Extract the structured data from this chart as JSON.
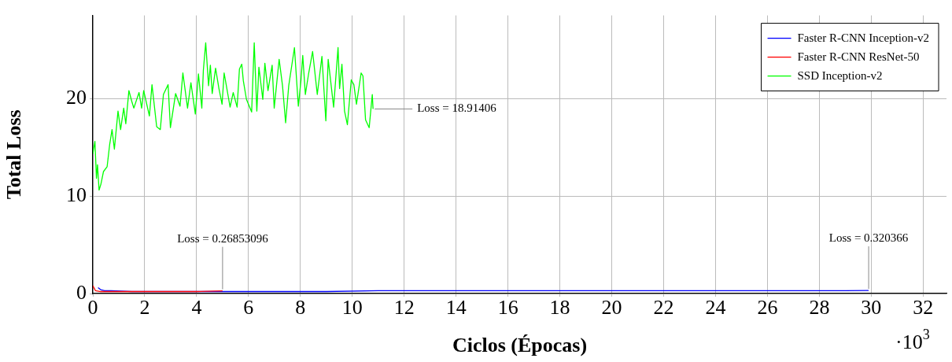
{
  "chart_data": {
    "type": "line",
    "xlabel": "Ciclos (Épocas)",
    "ylabel": "Total Loss",
    "xlim": [
      0,
      32.9
    ],
    "xticks": [
      0,
      2,
      4,
      6,
      8,
      10,
      12,
      14,
      16,
      18,
      20,
      22,
      24,
      26,
      28,
      30,
      32
    ],
    "ylim": [
      0,
      28.5
    ],
    "yticks": [
      0,
      10,
      20
    ],
    "grid": true,
    "legend": "top right",
    "marker": "none",
    "line_style": "solid",
    "annotations": [
      {
        "text": "Loss = 18.91406",
        "x": 10.8,
        "y": 18.91406
      },
      {
        "text": "Loss = 0.26853096",
        "x": 5.0,
        "y": 0.26853096
      },
      {
        "text": "Loss = 0.320366",
        "x": 29.9,
        "y": 0.320366
      },
      "·10$^{3}$"
    ],
    "series": [
      {
        "name": "Faster R-CNN Inception-v2",
        "color": "#0000ff",
        "x": [
          0.2,
          0.3,
          0.45,
          0.7,
          1.5,
          3,
          5,
          7,
          9,
          11,
          13,
          15,
          17,
          19,
          21,
          23,
          25,
          27,
          29,
          29.9
        ],
        "values": [
          0.6,
          0.4,
          0.3,
          0.3,
          0.2,
          0.2,
          0.2,
          0.2,
          0.2,
          0.3,
          0.3,
          0.3,
          0.3,
          0.3,
          0.3,
          0.3,
          0.3,
          0.3,
          0.3,
          0.320366
        ]
      },
      {
        "name": "Faster R-CNN ResNet-50",
        "color": "#ff0000",
        "x": [
          0,
          0.1,
          0.3,
          0.6,
          1,
          2,
          3,
          4,
          5.0
        ],
        "values": [
          0.8,
          0.3,
          0.2,
          0.2,
          0.2,
          0.2,
          0.2,
          0.2,
          0.26853096
        ]
      },
      {
        "name": "SSD Inception-v2",
        "color": "#00ff00",
        "x": [
          0,
          0.08,
          0.14,
          0.18,
          0.24,
          0.31,
          0.41,
          0.55,
          0.65,
          0.74,
          0.83,
          0.97,
          1.07,
          1.19,
          1.27,
          1.39,
          1.5,
          1.58,
          1.78,
          1.88,
          1.96,
          2.18,
          2.28,
          2.46,
          2.6,
          2.72,
          2.9,
          2.99,
          3.19,
          3.36,
          3.47,
          3.65,
          3.78,
          3.95,
          4.07,
          4.2,
          4.26,
          4.35,
          4.46,
          4.53,
          4.6,
          4.73,
          4.86,
          4.98,
          5.06,
          5.29,
          5.41,
          5.56,
          5.65,
          5.74,
          5.8,
          5.92,
          6.12,
          6.22,
          6.32,
          6.4,
          6.55,
          6.63,
          6.75,
          6.91,
          6.99,
          7.18,
          7.31,
          7.43,
          7.55,
          7.77,
          7.92,
          8.02,
          8.09,
          8.19,
          8.32,
          8.47,
          8.65,
          8.83,
          8.98,
          9.07,
          9.28,
          9.45,
          9.51,
          9.6,
          9.7,
          9.81,
          9.96,
          10.06,
          10.16,
          10.34,
          10.41,
          10.51,
          10.65,
          10.77,
          10.8
        ],
        "values": [
          14.3,
          15.6,
          11.8,
          13.2,
          10.6,
          11.2,
          12.5,
          13.0,
          15.3,
          16.8,
          14.8,
          18.7,
          16.8,
          19.0,
          17.4,
          20.8,
          19.7,
          19.0,
          20.6,
          19.0,
          20.8,
          18.2,
          21.4,
          17.1,
          16.8,
          20.4,
          21.4,
          17.0,
          20.5,
          19.2,
          22.6,
          19.0,
          21.6,
          18.4,
          22.5,
          19.0,
          22.9,
          25.7,
          21.3,
          23.4,
          20.5,
          23.1,
          21.0,
          19.4,
          22.6,
          19.1,
          20.6,
          19.1,
          23.0,
          23.5,
          21.8,
          19.9,
          18.6,
          25.7,
          18.7,
          23.2,
          19.9,
          23.6,
          20.8,
          23.4,
          19.0,
          24.0,
          21.3,
          17.5,
          21.3,
          25.2,
          19.2,
          21.8,
          24.4,
          20.4,
          22.6,
          24.8,
          20.4,
          24.3,
          17.7,
          24.0,
          19.1,
          25.2,
          21.0,
          23.5,
          18.7,
          17.3,
          21.9,
          21.4,
          19.4,
          22.6,
          22.3,
          17.8,
          17.0,
          20.4,
          18.91406
        ]
      }
    ]
  }
}
